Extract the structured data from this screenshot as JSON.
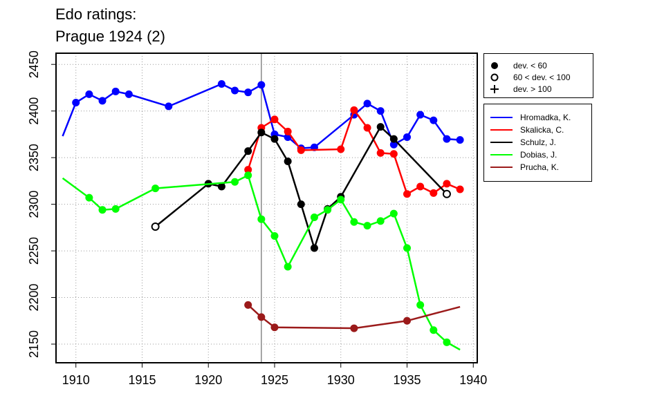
{
  "title": [
    "Edo ratings:",
    "Prague 1924 (2)"
  ],
  "chart_data": {
    "type": "line",
    "title": "Edo ratings: Prague 1924 (2)",
    "xlim": [
      1908.5,
      1940.3
    ],
    "ylim": [
      2130,
      2462
    ],
    "x_ticks": [
      1910,
      1915,
      1920,
      1925,
      1930,
      1935,
      1940
    ],
    "y_ticks": [
      2150,
      2200,
      2250,
      2300,
      2350,
      2400,
      2450
    ],
    "grid": true,
    "reference_line_x": 1924,
    "deviation_legend": [
      {
        "symbol": "filled-circle",
        "label": "dev. < 60"
      },
      {
        "symbol": "open-circle",
        "label": "60 < dev. < 100"
      },
      {
        "symbol": "plus",
        "label": "dev. > 100"
      }
    ],
    "legend_position": "right",
    "series": [
      {
        "name": "Hromadka, K.",
        "color": "#0000ff",
        "points": [
          [
            1909,
            2373,
            "plus"
          ],
          [
            1910,
            2409,
            "filled"
          ],
          [
            1911,
            2418,
            "filled"
          ],
          [
            1912,
            2411,
            "filled"
          ],
          [
            1913,
            2421,
            "filled"
          ],
          [
            1914,
            2418,
            "filled"
          ],
          [
            1917,
            2405,
            "filled"
          ],
          [
            1921,
            2429,
            "filled"
          ],
          [
            1922,
            2422,
            "filled"
          ],
          [
            1923,
            2420,
            "filled"
          ],
          [
            1924,
            2428,
            "filled"
          ],
          [
            1925,
            2375,
            "filled"
          ],
          [
            1926,
            2372,
            "filled"
          ],
          [
            1927,
            2360,
            "filled"
          ],
          [
            1928,
            2361,
            "filled"
          ],
          [
            1931,
            2396,
            "filled"
          ],
          [
            1932,
            2408,
            "filled"
          ],
          [
            1933,
            2400,
            "filled"
          ],
          [
            1934,
            2364,
            "filled"
          ],
          [
            1935,
            2372,
            "filled"
          ],
          [
            1936,
            2396,
            "filled"
          ],
          [
            1937,
            2390,
            "filled"
          ],
          [
            1938,
            2370,
            "filled"
          ],
          [
            1939,
            2369,
            "filled"
          ]
        ]
      },
      {
        "name": "Skalicka, C.",
        "color": "#ff0000",
        "points": [
          [
            1923,
            2337,
            "filled"
          ],
          [
            1924,
            2382,
            "filled"
          ],
          [
            1925,
            2391,
            "filled"
          ],
          [
            1926,
            2378,
            "filled"
          ],
          [
            1927,
            2358,
            "filled"
          ],
          [
            1930,
            2359,
            "filled"
          ],
          [
            1931,
            2401,
            "filled"
          ],
          [
            1932,
            2382,
            "filled"
          ],
          [
            1933,
            2355,
            "filled"
          ],
          [
            1934,
            2354,
            "filled"
          ],
          [
            1935,
            2311,
            "filled"
          ],
          [
            1936,
            2319,
            "filled"
          ],
          [
            1937,
            2312,
            "filled"
          ],
          [
            1938,
            2322,
            "filled"
          ],
          [
            1939,
            2316,
            "filled"
          ]
        ]
      },
      {
        "name": "Schulz, J.",
        "color": "#000000",
        "points": [
          [
            1916,
            2276,
            "open"
          ],
          [
            1920,
            2322,
            "filled"
          ],
          [
            1921,
            2319,
            "filled"
          ],
          [
            1923,
            2357,
            "filled"
          ],
          [
            1924,
            2377,
            "filled"
          ],
          [
            1925,
            2370,
            "filled"
          ],
          [
            1926,
            2346,
            "filled"
          ],
          [
            1927,
            2300,
            "filled"
          ],
          [
            1928,
            2253,
            "filled"
          ],
          [
            1929,
            2295,
            "filled"
          ],
          [
            1930,
            2308,
            "filled"
          ],
          [
            1933,
            2383,
            "filled"
          ],
          [
            1934,
            2370,
            "filled"
          ],
          [
            1938,
            2311,
            "open"
          ]
        ]
      },
      {
        "name": "Dobias, J.",
        "color": "#00ff00",
        "points": [
          [
            1909,
            2328,
            "plus"
          ],
          [
            1911,
            2307,
            "filled"
          ],
          [
            1912,
            2294,
            "filled"
          ],
          [
            1913,
            2295,
            "filled"
          ],
          [
            1916,
            2317,
            "filled"
          ],
          [
            1922,
            2324,
            "filled"
          ],
          [
            1923,
            2331,
            "filled"
          ],
          [
            1924,
            2284,
            "filled"
          ],
          [
            1925,
            2266,
            "filled"
          ],
          [
            1926,
            2233,
            "filled"
          ],
          [
            1928,
            2286,
            "filled"
          ],
          [
            1929,
            2294,
            "filled"
          ],
          [
            1930,
            2305,
            "filled"
          ],
          [
            1931,
            2281,
            "filled"
          ],
          [
            1932,
            2277,
            "filled"
          ],
          [
            1933,
            2282,
            "filled"
          ],
          [
            1934,
            2290,
            "filled"
          ],
          [
            1935,
            2253,
            "filled"
          ],
          [
            1936,
            2192,
            "filled"
          ],
          [
            1937,
            2165,
            "filled"
          ],
          [
            1938,
            2152,
            "filled"
          ],
          [
            1939,
            2144,
            "plus"
          ]
        ]
      },
      {
        "name": "Prucha, K.",
        "color": "#9b1a1a",
        "points": [
          [
            1923,
            2192,
            "filled"
          ],
          [
            1924,
            2179,
            "filled"
          ],
          [
            1925,
            2168,
            "filled"
          ],
          [
            1931,
            2167,
            "filled"
          ],
          [
            1935,
            2175,
            "filled"
          ],
          [
            1939,
            2190,
            "plus"
          ]
        ]
      }
    ]
  }
}
